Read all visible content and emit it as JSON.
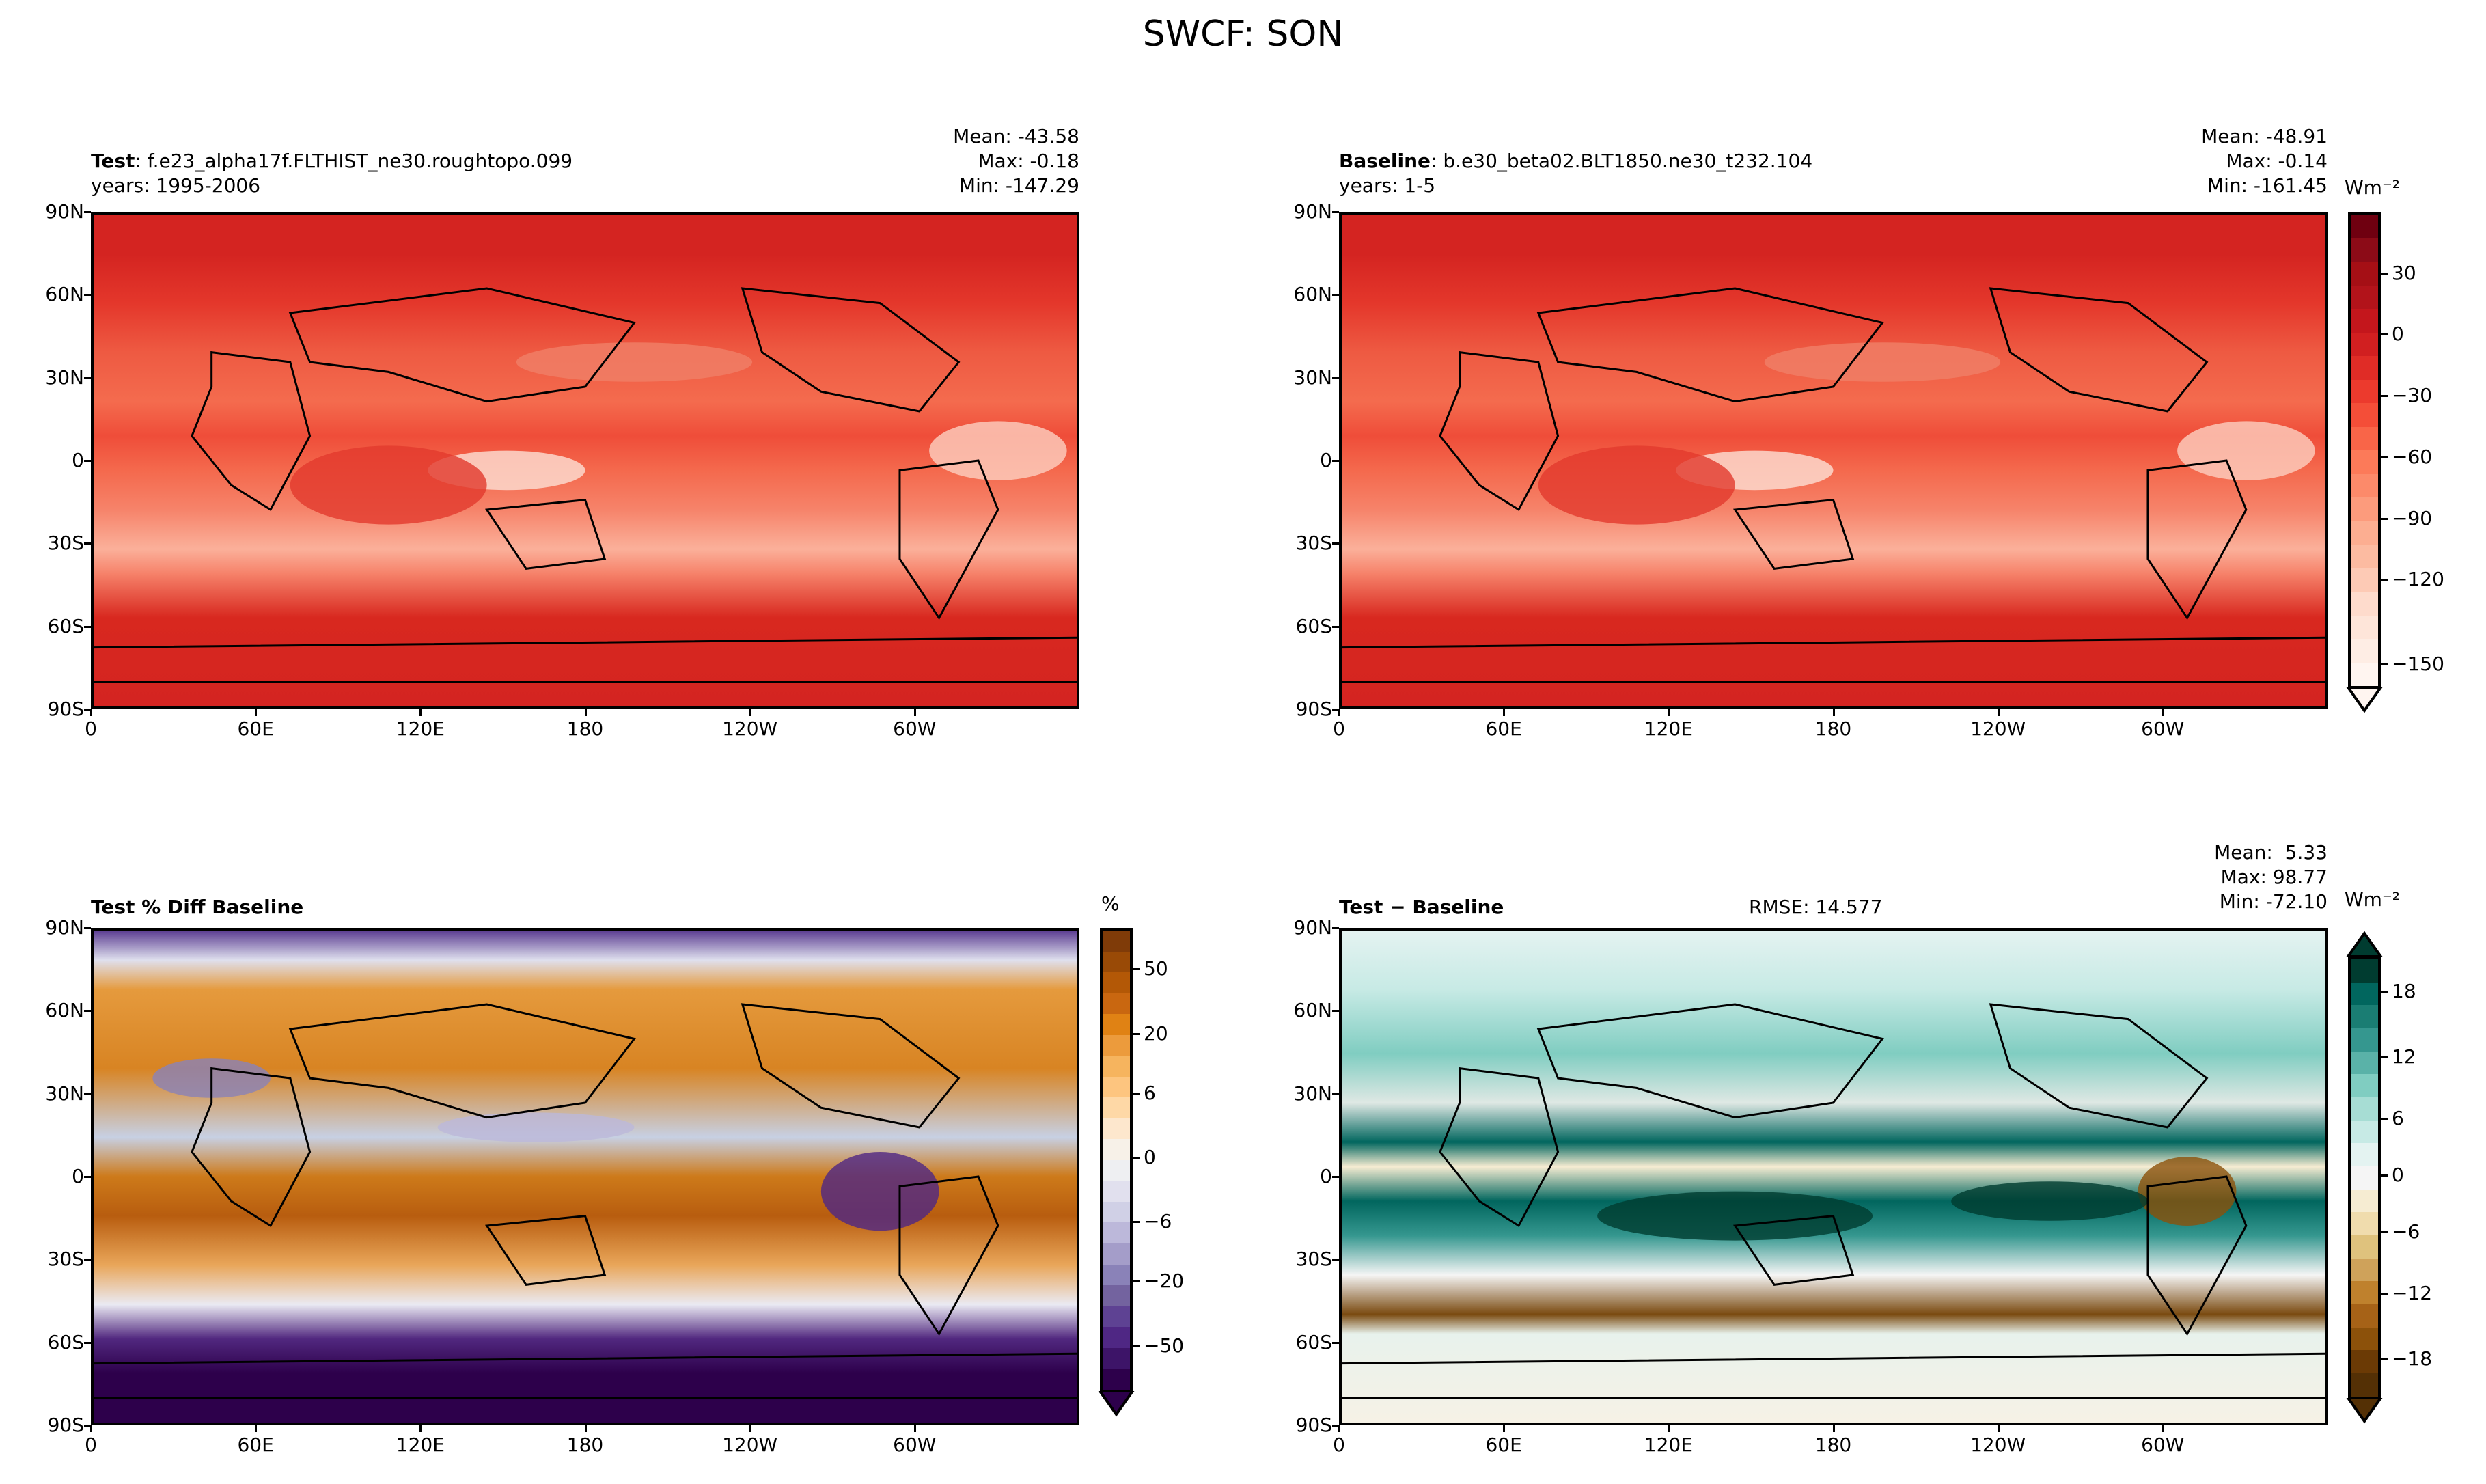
{
  "title": "SWCF: SON",
  "chart_data": [
    {
      "type": "heatmap",
      "panel": "test",
      "name_label": "Test",
      "name_sep": ":",
      "case": "f.e23_alpha17f.FLTHIST_ne30.roughtopo.099",
      "years": "years: 1995-2006",
      "stats": {
        "mean": "Mean: -43.58",
        "max": "Max: -0.18",
        "min": "Min: -147.29"
      },
      "colormap": "Reds",
      "xticks": [
        "0",
        "60E",
        "120E",
        "180",
        "120W",
        "60W"
      ],
      "yticks": [
        "90N",
        "60N",
        "30N",
        "0",
        "30S",
        "60S",
        "90S"
      ]
    },
    {
      "type": "heatmap",
      "panel": "baseline",
      "name_label": "Baseline",
      "name_sep": ":",
      "case": "b.e30_beta02.BLT1850.ne30_t232.104",
      "years": "years: 1-5",
      "stats": {
        "mean": "Mean: -48.91",
        "max": "Max: -0.14",
        "min": "Min: -161.45"
      },
      "colormap": "Reds",
      "xticks": [
        "0",
        "60E",
        "120E",
        "180",
        "120W",
        "60W"
      ],
      "yticks": [
        "90N",
        "60N",
        "30N",
        "0",
        "30S",
        "60S",
        "90S"
      ]
    },
    {
      "type": "heatmap",
      "panel": "pct_diff",
      "name_label": "Test % Diff Baseline",
      "colormap": "PuOr",
      "xticks": [
        "0",
        "60E",
        "120E",
        "180",
        "120W",
        "60W"
      ],
      "yticks": [
        "90N",
        "60N",
        "30N",
        "0",
        "30S",
        "60S",
        "90S"
      ]
    },
    {
      "type": "heatmap",
      "panel": "diff",
      "name_label": "Test − Baseline",
      "rmse": "RMSE: 14.577",
      "stats": {
        "mean": "Mean:  5.33",
        "max": "Max: 98.77",
        "min": "Min: -72.10"
      },
      "colormap": "BrBG",
      "xticks": [
        "0",
        "60E",
        "120E",
        "180",
        "120W",
        "60W"
      ],
      "yticks": [
        "90N",
        "60N",
        "30N",
        "0",
        "30S",
        "60S",
        "90S"
      ]
    }
  ],
  "colorbars": {
    "main": {
      "unit": "Wm⁻²",
      "ticks": [
        "30",
        "0",
        "−30",
        "−60",
        "−90",
        "−120",
        "−150"
      ],
      "colors": [
        "#6f0010",
        "#8c0b17",
        "#a50f15",
        "#b2131a",
        "#c4161c",
        "#d11f20",
        "#e02c26",
        "#ec3a2d",
        "#f44e38",
        "#f96548",
        "#fc7a59",
        "#fc8a6a",
        "#fc9b7c",
        "#fcae91",
        "#fcbba1",
        "#fdcab5",
        "#fedbcc",
        "#fee5d9",
        "#feede4",
        "#fff5f0"
      ]
    },
    "pct": {
      "unit": "%",
      "ticks": [
        "50",
        "20",
        "6",
        "0",
        "−6",
        "−20",
        "−50"
      ],
      "colors": [
        "#7f3b08",
        "#994a06",
        "#b35806",
        "#c96710",
        "#e08214",
        "#ec9b3c",
        "#f6b45e",
        "#fdc57f",
        "#fed8a6",
        "#fde7cd",
        "#f7f1e8",
        "#eeeff2",
        "#e1e0ee",
        "#d0d0e6",
        "#bcb8da",
        "#a49dc9",
        "#8a82b8",
        "#73639f",
        "#5e4293",
        "#4f2784",
        "#3d1468",
        "#2d004b"
      ]
    },
    "diff": {
      "unit": "Wm⁻²",
      "ticks": [
        "18",
        "12",
        "6",
        "0",
        "−6",
        "−12",
        "−18"
      ],
      "colors": [
        "#003c30",
        "#01665e",
        "#1a7d73",
        "#35978f",
        "#5ab2a8",
        "#80cdc1",
        "#a7ddd4",
        "#c7eae5",
        "#e4f3f1",
        "#f5f5f5",
        "#f6ecd2",
        "#f0dcad",
        "#dfc27d",
        "#cfa25a",
        "#bf812d",
        "#a66217",
        "#8c510a",
        "#6b3a05",
        "#543005"
      ]
    }
  }
}
